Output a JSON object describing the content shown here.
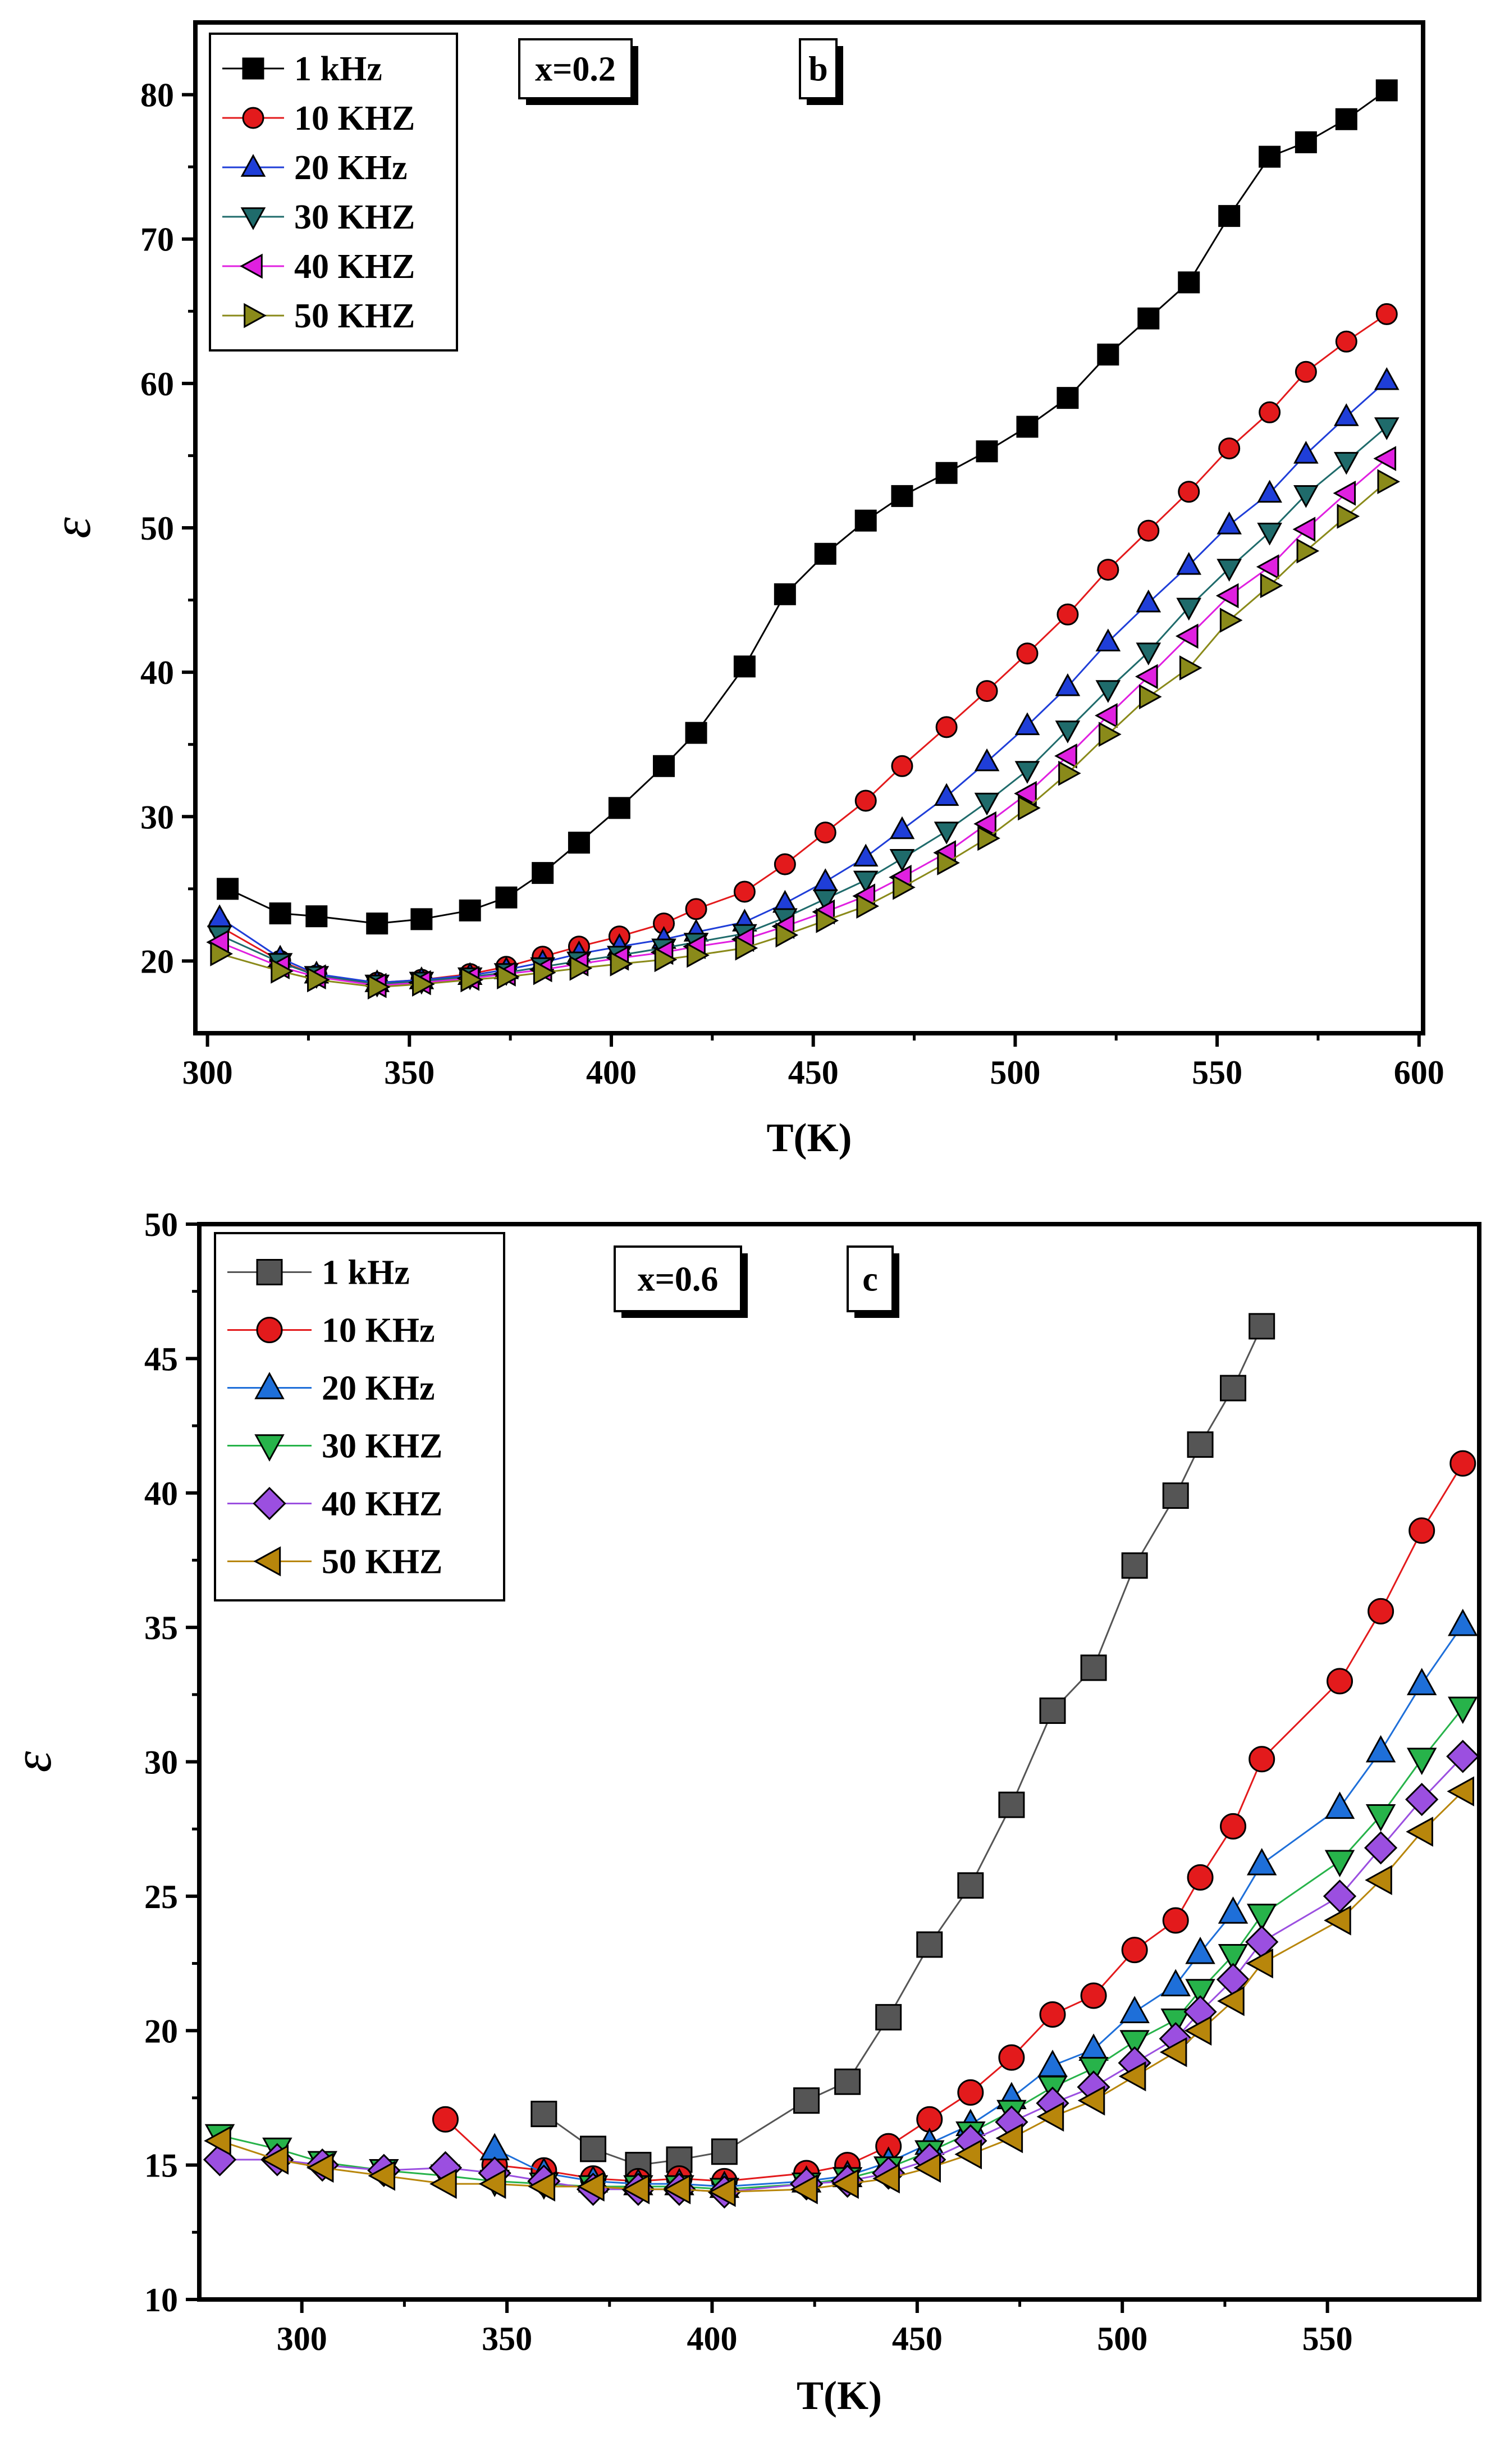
{
  "chart_data": [
    {
      "panel": "b",
      "type": "line",
      "annotation": "x=0.2",
      "panel_label": "b",
      "xlabel": "T(K)",
      "ylabel": "ε",
      "xlim": [
        297,
        601
      ],
      "ylim": [
        15,
        85
      ],
      "xticks": [
        300,
        350,
        400,
        450,
        500,
        550,
        600
      ],
      "yticks": [
        20,
        30,
        40,
        50,
        60,
        70,
        80
      ],
      "legend_position": "top-left",
      "series": [
        {
          "name": "1 kHz",
          "color": "#000000",
          "marker": "square",
          "x": [
            305,
            318,
            327,
            342,
            353,
            365,
            374,
            383,
            392,
            402,
            413,
            421,
            433,
            443,
            453,
            463,
            472,
            483,
            493,
            503,
            513,
            523,
            533,
            543,
            553,
            563,
            572,
            582,
            592
          ],
          "y": [
            25.0,
            23.3,
            23.1,
            22.6,
            22.9,
            23.5,
            24.4,
            26.1,
            28.2,
            30.6,
            33.5,
            35.8,
            40.4,
            45.4,
            48.2,
            50.5,
            52.2,
            53.8,
            55.3,
            57.0,
            59.0,
            62.0,
            64.5,
            67.0,
            71.6,
            75.7,
            76.7,
            78.3,
            80.3
          ]
        },
        {
          "name": "10 KHZ",
          "color": "#e31a1c",
          "marker": "circle",
          "x": [
            303,
            318,
            327,
            342,
            353,
            365,
            374,
            383,
            392,
            402,
            413,
            421,
            433,
            443,
            453,
            463,
            472,
            483,
            493,
            503,
            513,
            523,
            533,
            543,
            553,
            563,
            572,
            582,
            592
          ],
          "y": [
            22.4,
            20.0,
            19.0,
            18.5,
            18.7,
            19.1,
            19.6,
            20.3,
            21.0,
            21.7,
            22.6,
            23.6,
            24.8,
            26.7,
            28.9,
            31.1,
            33.5,
            36.2,
            38.7,
            41.3,
            44.0,
            47.1,
            49.8,
            52.5,
            55.5,
            58.0,
            60.8,
            62.9,
            64.8
          ]
        },
        {
          "name": "20 KHz",
          "color": "#1f3ed8",
          "marker": "triangle-up",
          "x": [
            303,
            318,
            327,
            342,
            353,
            365,
            374,
            383,
            392,
            402,
            413,
            421,
            433,
            443,
            453,
            463,
            472,
            483,
            493,
            503,
            513,
            523,
            533,
            543,
            553,
            563,
            572,
            582,
            592
          ],
          "y": [
            23.0,
            20.2,
            19.1,
            18.5,
            18.7,
            19.0,
            19.4,
            19.9,
            20.5,
            21.0,
            21.5,
            22.0,
            22.7,
            24.0,
            25.5,
            27.2,
            29.1,
            31.4,
            33.8,
            36.3,
            39.0,
            42.1,
            44.8,
            47.4,
            50.2,
            52.4,
            55.1,
            57.7,
            60.2
          ]
        },
        {
          "name": "30 KHZ",
          "color": "#1f6b6b",
          "marker": "triangle-down",
          "x": [
            303,
            318,
            327,
            342,
            353,
            365,
            374,
            383,
            392,
            402,
            413,
            421,
            433,
            443,
            453,
            463,
            472,
            483,
            493,
            503,
            513,
            523,
            533,
            543,
            553,
            563,
            572,
            582,
            592
          ],
          "y": [
            21.8,
            19.9,
            19.0,
            18.4,
            18.6,
            18.9,
            19.2,
            19.6,
            20.0,
            20.4,
            20.9,
            21.3,
            21.9,
            23.0,
            24.3,
            25.6,
            27.1,
            29.0,
            31.0,
            33.2,
            36.0,
            38.8,
            41.4,
            44.5,
            47.2,
            49.7,
            52.3,
            54.6,
            57.0
          ]
        },
        {
          "name": "40 KHZ",
          "color": "#e020e0",
          "marker": "triangle-left",
          "x": [
            303,
            318,
            327,
            342,
            353,
            365,
            374,
            383,
            392,
            402,
            413,
            421,
            433,
            443,
            453,
            463,
            472,
            483,
            493,
            503,
            513,
            523,
            533,
            543,
            553,
            563,
            572,
            582,
            592
          ],
          "y": [
            21.3,
            19.6,
            18.9,
            18.3,
            18.5,
            18.8,
            19.1,
            19.4,
            19.8,
            20.2,
            20.6,
            21.0,
            21.5,
            22.4,
            23.4,
            24.5,
            25.8,
            27.5,
            29.5,
            31.6,
            34.2,
            37.0,
            39.7,
            42.5,
            45.3,
            47.3,
            49.9,
            52.4,
            54.8
          ]
        },
        {
          "name": "50 KHZ",
          "color": "#8a8a1a",
          "marker": "triangle-right",
          "x": [
            303,
            318,
            327,
            342,
            353,
            365,
            374,
            383,
            392,
            402,
            413,
            421,
            433,
            443,
            453,
            463,
            472,
            483,
            493,
            503,
            513,
            523,
            533,
            543,
            553,
            563,
            572,
            582,
            592
          ],
          "y": [
            20.5,
            19.3,
            18.7,
            18.2,
            18.4,
            18.7,
            18.9,
            19.2,
            19.5,
            19.8,
            20.1,
            20.4,
            20.9,
            21.8,
            22.8,
            23.8,
            25.1,
            26.8,
            28.5,
            30.6,
            33.0,
            35.7,
            38.3,
            40.3,
            43.6,
            46.0,
            48.4,
            50.8,
            53.2
          ]
        }
      ]
    },
    {
      "panel": "c",
      "type": "line",
      "annotation": "x=0.6",
      "panel_label": "c",
      "xlabel": "T(K)",
      "ylabel": "ε",
      "xlim": [
        275,
        587
      ],
      "ylim": [
        10,
        50
      ],
      "xticks": [
        300,
        350,
        400,
        450,
        500,
        550
      ],
      "yticks": [
        10,
        15,
        20,
        25,
        30,
        35,
        40,
        45,
        50
      ],
      "legend_position": "top-left",
      "series": [
        {
          "name": "1 kHz",
          "color": "#555555",
          "marker": "square",
          "x": [
            359,
            371,
            382,
            392,
            403,
            423,
            433,
            443,
            453,
            463,
            473,
            483,
            493,
            503,
            513,
            519,
            527,
            534
          ],
          "y": [
            16.9,
            15.6,
            15.0,
            15.2,
            15.5,
            17.4,
            18.1,
            20.5,
            23.2,
            25.4,
            28.4,
            31.9,
            33.5,
            37.3,
            39.9,
            41.8,
            43.9,
            46.2
          ]
        },
        {
          "name": "10 KHz",
          "color": "#e31a1c",
          "marker": "circle",
          "x": [
            335,
            347,
            359,
            371,
            382,
            392,
            403,
            423,
            433,
            443,
            453,
            463,
            473,
            483,
            493,
            503,
            513,
            519,
            527,
            534,
            553,
            563,
            573,
            583
          ],
          "y": [
            16.7,
            15.0,
            14.8,
            14.5,
            14.4,
            14.5,
            14.4,
            14.7,
            15.0,
            15.7,
            16.7,
            17.7,
            19.0,
            20.6,
            21.3,
            23.0,
            24.1,
            25.7,
            27.6,
            30.1,
            33.0,
            35.6,
            38.6,
            41.1
          ]
        },
        {
          "name": "20 KHz",
          "color": "#1e6fd9",
          "marker": "triangle-up",
          "x": [
            347,
            359,
            371,
            382,
            392,
            403,
            423,
            433,
            443,
            453,
            463,
            473,
            483,
            493,
            503,
            513,
            519,
            527,
            534,
            553,
            563,
            573,
            583
          ],
          "y": [
            15.6,
            14.7,
            14.4,
            14.3,
            14.3,
            14.2,
            14.4,
            14.6,
            15.1,
            15.8,
            16.5,
            17.5,
            18.7,
            19.3,
            20.7,
            21.7,
            22.9,
            24.4,
            26.2,
            28.3,
            30.4,
            32.9,
            35.1
          ]
        },
        {
          "name": "30 KHZ",
          "color": "#27b34a",
          "marker": "triangle-down",
          "x": [
            280,
            294,
            305,
            320,
            335,
            347,
            359,
            371,
            382,
            392,
            403,
            423,
            433,
            443,
            453,
            463,
            473,
            483,
            493,
            503,
            513,
            519,
            527,
            534,
            553,
            563,
            573,
            583
          ],
          "y": [
            16.1,
            15.6,
            15.1,
            14.8,
            14.6,
            14.4,
            14.3,
            14.2,
            14.2,
            14.2,
            14.1,
            14.3,
            14.5,
            14.9,
            15.5,
            16.2,
            17.0,
            17.9,
            18.6,
            19.6,
            20.4,
            21.5,
            22.8,
            24.3,
            26.3,
            28.0,
            30.1,
            32.0
          ]
        },
        {
          "name": "40 KHZ",
          "color": "#9b4fe0",
          "marker": "diamond",
          "x": [
            280,
            294,
            305,
            320,
            335,
            347,
            359,
            371,
            382,
            392,
            403,
            423,
            433,
            443,
            453,
            463,
            473,
            483,
            493,
            503,
            513,
            519,
            527,
            534,
            553,
            563,
            573,
            583
          ],
          "y": [
            15.2,
            15.2,
            15.0,
            14.8,
            14.9,
            14.7,
            14.4,
            14.1,
            14.1,
            14.1,
            14.0,
            14.3,
            14.4,
            14.7,
            15.2,
            15.9,
            16.6,
            17.3,
            17.9,
            18.8,
            19.7,
            20.7,
            21.9,
            23.3,
            25.0,
            26.8,
            28.6,
            30.2
          ]
        },
        {
          "name": "50 KHZ",
          "color": "#b8860b",
          "marker": "triangle-left",
          "x": [
            280,
            294,
            305,
            320,
            335,
            347,
            359,
            371,
            382,
            392,
            403,
            423,
            433,
            443,
            453,
            463,
            473,
            483,
            493,
            503,
            513,
            519,
            527,
            534,
            553,
            563,
            573,
            583
          ],
          "y": [
            15.9,
            15.2,
            14.9,
            14.6,
            14.3,
            14.3,
            14.2,
            14.2,
            14.1,
            14.1,
            14.0,
            14.1,
            14.3,
            14.5,
            14.9,
            15.4,
            16.0,
            16.8,
            17.4,
            18.3,
            19.2,
            20.0,
            21.1,
            22.5,
            24.1,
            25.6,
            27.4,
            28.9
          ]
        }
      ]
    }
  ]
}
